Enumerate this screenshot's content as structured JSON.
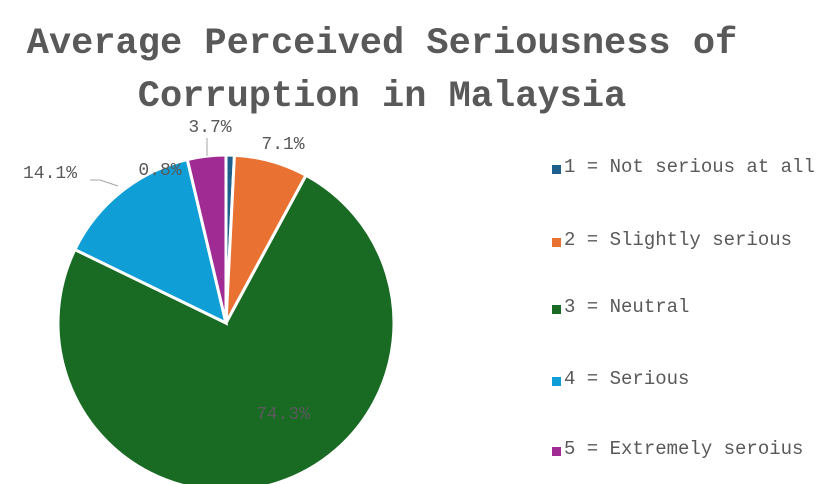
{
  "chart_data": {
    "type": "pie",
    "title": "Average Perceived Seriousness of Corruption in Malaysia",
    "categories": [
      "1 = Not serious at all",
      "2 = Slightly serious",
      "3 = Neutral",
      "4 = Serious",
      "5 = Extremely seroius"
    ],
    "values": [
      0.8,
      7.1,
      74.3,
      14.1,
      3.7
    ],
    "value_labels": [
      "0.8%",
      "7.1%",
      "74.3%",
      "14.1%",
      "3.7%"
    ],
    "colors": [
      "#1f5f8b",
      "#e97132",
      "#196b24",
      "#0f9ed5",
      "#a02b93"
    ],
    "legend": "right"
  }
}
